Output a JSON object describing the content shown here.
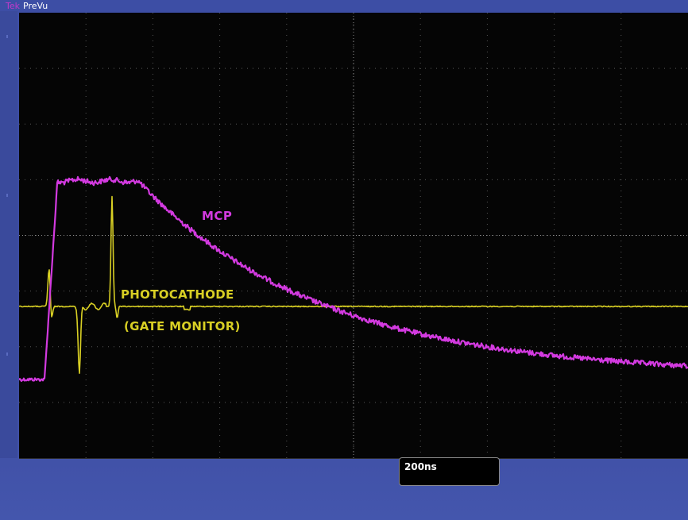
{
  "top_bar": {
    "brand": "Tek",
    "mode": "PreVu"
  },
  "annotations": {
    "mcp": "MCP",
    "photocathode": "PHOTOCATHODE",
    "gate_monitor": "(GATE MONITOR)"
  },
  "timebase": {
    "value": "200ns"
  },
  "colors": {
    "background": "#050505",
    "grid": "#7a7a7a",
    "mcp": "#d33ae0",
    "photocathode": "#d8cf24",
    "frame": "#3d4ea5",
    "trigger_marker": "#f0a400"
  },
  "screen": {
    "grid": true,
    "horizontal_divisions": 10,
    "vertical_divisions": 8
  }
}
